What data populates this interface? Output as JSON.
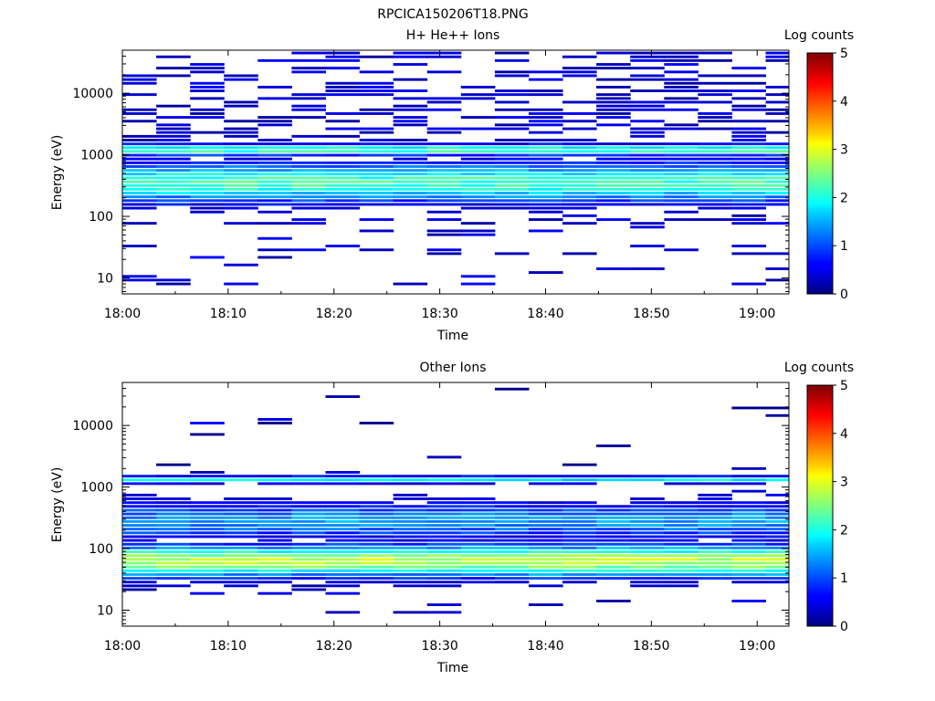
{
  "figure_title": "RPCICA150206T18.PNG",
  "colorbar": {
    "label": "Log counts",
    "range": [
      0,
      5
    ],
    "ticks": [
      "0",
      "1",
      "2",
      "3",
      "4",
      "5"
    ],
    "colormap": "jet"
  },
  "chart_data": [
    {
      "type": "heatmap",
      "title": "H+ He++ Ions",
      "xlabel": "Time",
      "ylabel": "Energy (eV)",
      "x_ticks": [
        "18:00",
        "18:10",
        "18:20",
        "18:30",
        "18:40",
        "18:50",
        "19:00"
      ],
      "y_ticks": [
        "10",
        "100",
        "1000",
        "10000"
      ],
      "y_scale": "log",
      "ylim": [
        5.5,
        50000
      ],
      "xlim_minutes": [
        0,
        63
      ],
      "time_bins_minutes": [
        0,
        3.2,
        6.4,
        9.6,
        12.8,
        16,
        19.2,
        22.4,
        25.6,
        28.8,
        32,
        35.2,
        38.4,
        41.6,
        44.8,
        48,
        51.2,
        54.4,
        57.6,
        60.8
      ],
      "z_label": "Log counts",
      "zlim": [
        0,
        5
      ],
      "profile_peaks": [
        {
          "log_energy": 3.08,
          "value": 2.3,
          "width": 0.06
        },
        {
          "log_energy": 2.55,
          "value": 2.2,
          "width": 0.22
        }
      ]
    },
    {
      "type": "heatmap",
      "title": "Other Ions",
      "xlabel": "Time",
      "ylabel": "Energy (eV)",
      "x_ticks": [
        "18:00",
        "18:10",
        "18:20",
        "18:30",
        "18:40",
        "18:50",
        "19:00"
      ],
      "y_ticks": [
        "10",
        "100",
        "1000",
        "10000"
      ],
      "y_scale": "log",
      "ylim": [
        5.5,
        50000
      ],
      "xlim_minutes": [
        0,
        63
      ],
      "time_bins_minutes": [
        0,
        3.2,
        6.4,
        9.6,
        12.8,
        16,
        19.2,
        22.4,
        25.6,
        28.8,
        32,
        35.2,
        38.4,
        41.6,
        44.8,
        48,
        51.2,
        54.4,
        57.6,
        60.8
      ],
      "z_label": "Log counts",
      "zlim": [
        0,
        5
      ],
      "profile_peaks": [
        {
          "log_energy": 1.8,
          "value": 2.8,
          "width": 0.18
        },
        {
          "log_energy": 2.45,
          "value": 1.4,
          "width": 0.2
        },
        {
          "log_energy": 3.12,
          "value": 1.8,
          "width": 0.04
        }
      ]
    }
  ]
}
